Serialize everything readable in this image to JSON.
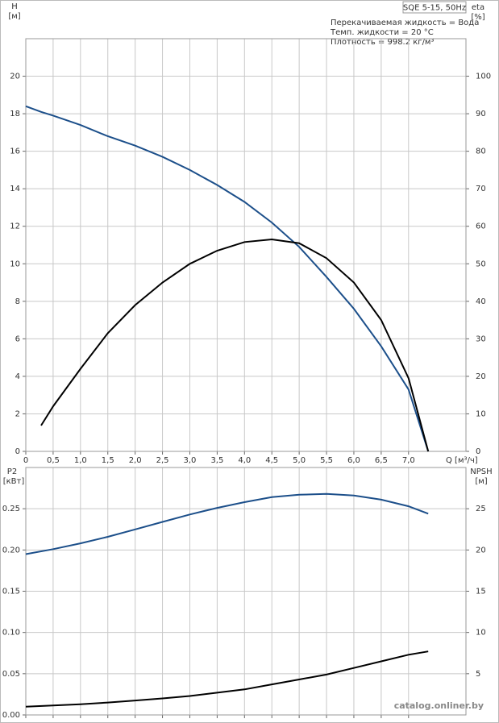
{
  "chart_data": [
    {
      "type": "line",
      "title": "SQE 5-15, 50Hz",
      "annotations": [
        "Перекачиваемая жидкость = Вода",
        "Темп. жидкости = 20 °C",
        "Плотность = 998.2 кг/м³"
      ],
      "y_label": "H",
      "y_unit": "[м]",
      "y2_label": "eta",
      "y2_unit": "[%]",
      "x_label": "Q [м³/ч]",
      "x": [
        0,
        0.28,
        0.5,
        1,
        1.5,
        2,
        2.5,
        3,
        3.5,
        4,
        4.5,
        5,
        5.5,
        6,
        6.5,
        7,
        7.36
      ],
      "series": [
        {
          "name": "H",
          "color": "#1c4f8a",
          "values": [
            18.4,
            18.1,
            17.9,
            17.4,
            16.8,
            16.3,
            15.7,
            15.0,
            14.2,
            13.3,
            12.2,
            10.9,
            9.3,
            7.6,
            5.6,
            3.3,
            0
          ]
        },
        {
          "name": "eta",
          "color": "#000000",
          "axis": "y2",
          "values": [
            null,
            6.9,
            12,
            22,
            31.5,
            39,
            45,
            50,
            53.5,
            55.8,
            56.5,
            55.5,
            51.5,
            45,
            35,
            19.5,
            0
          ]
        }
      ],
      "xlim": [
        0,
        8.05
      ],
      "xticks": [
        0,
        {
          "value": 0.5,
          "label": "0,5"
        },
        {
          "value": 1,
          "label": "1,0"
        },
        {
          "value": 1.5,
          "label": "1,5"
        },
        {
          "value": 2,
          "label": "2,0"
        },
        {
          "value": 2.5,
          "label": "2,5"
        },
        {
          "value": 3,
          "label": "3,0"
        },
        {
          "value": 3.5,
          "label": "3,5"
        },
        {
          "value": 4,
          "label": "4,0"
        },
        {
          "value": 4.5,
          "label": "4,5"
        },
        {
          "value": 5,
          "label": "5,0"
        },
        {
          "value": 5.5,
          "label": "5,5"
        },
        {
          "value": 6,
          "label": "6,0"
        },
        {
          "value": 6.5,
          "label": "6,5"
        },
        {
          "value": 7,
          "label": "7,0"
        }
      ],
      "ylim": [
        0,
        22
      ],
      "yticks": [
        0,
        2,
        4,
        6,
        8,
        10,
        12,
        14,
        16,
        18,
        20
      ],
      "y2lim": [
        0,
        110
      ],
      "y2ticks": [
        0,
        10,
        20,
        30,
        40,
        50,
        60,
        70,
        80,
        90,
        100
      ],
      "grid": true
    },
    {
      "type": "line",
      "y_label": "P2",
      "y_unit": "[кВт]",
      "y2_label": "NPSH",
      "y2_unit": "[м]",
      "x": [
        0,
        0.5,
        1,
        1.5,
        2,
        2.5,
        3,
        3.5,
        4,
        4.5,
        5,
        5.5,
        6,
        6.5,
        7,
        7.36
      ],
      "series": [
        {
          "name": "P2",
          "color": "#1c4f8a",
          "values": [
            0.195,
            0.201,
            0.208,
            0.216,
            0.225,
            0.234,
            0.243,
            0.251,
            0.258,
            0.264,
            0.267,
            0.268,
            0.266,
            0.261,
            0.253,
            0.244
          ]
        },
        {
          "name": "NPSH",
          "color": "#000000",
          "axis": "y2",
          "values": [
            1.0,
            1.15,
            1.3,
            1.5,
            1.75,
            2.0,
            2.3,
            2.7,
            3.1,
            3.7,
            4.3,
            4.9,
            5.7,
            6.5,
            7.3,
            7.7
          ]
        }
      ],
      "xlim": [
        0,
        8.05
      ],
      "ylim": [
        0,
        0.3
      ],
      "yticks": [
        {
          "value": 0,
          "label": "0.00"
        },
        {
          "value": 0.05,
          "label": "0.05"
        },
        {
          "value": 0.1,
          "label": "0.10"
        },
        {
          "value": 0.15,
          "label": "0.15"
        },
        {
          "value": 0.2,
          "label": "0.20"
        },
        {
          "value": 0.25,
          "label": "0.25"
        }
      ],
      "y2lim": [
        0,
        30
      ],
      "y2ticks": [
        5,
        10,
        15,
        20,
        25
      ],
      "grid": true
    }
  ],
  "watermark": "catalog.onliner.by"
}
